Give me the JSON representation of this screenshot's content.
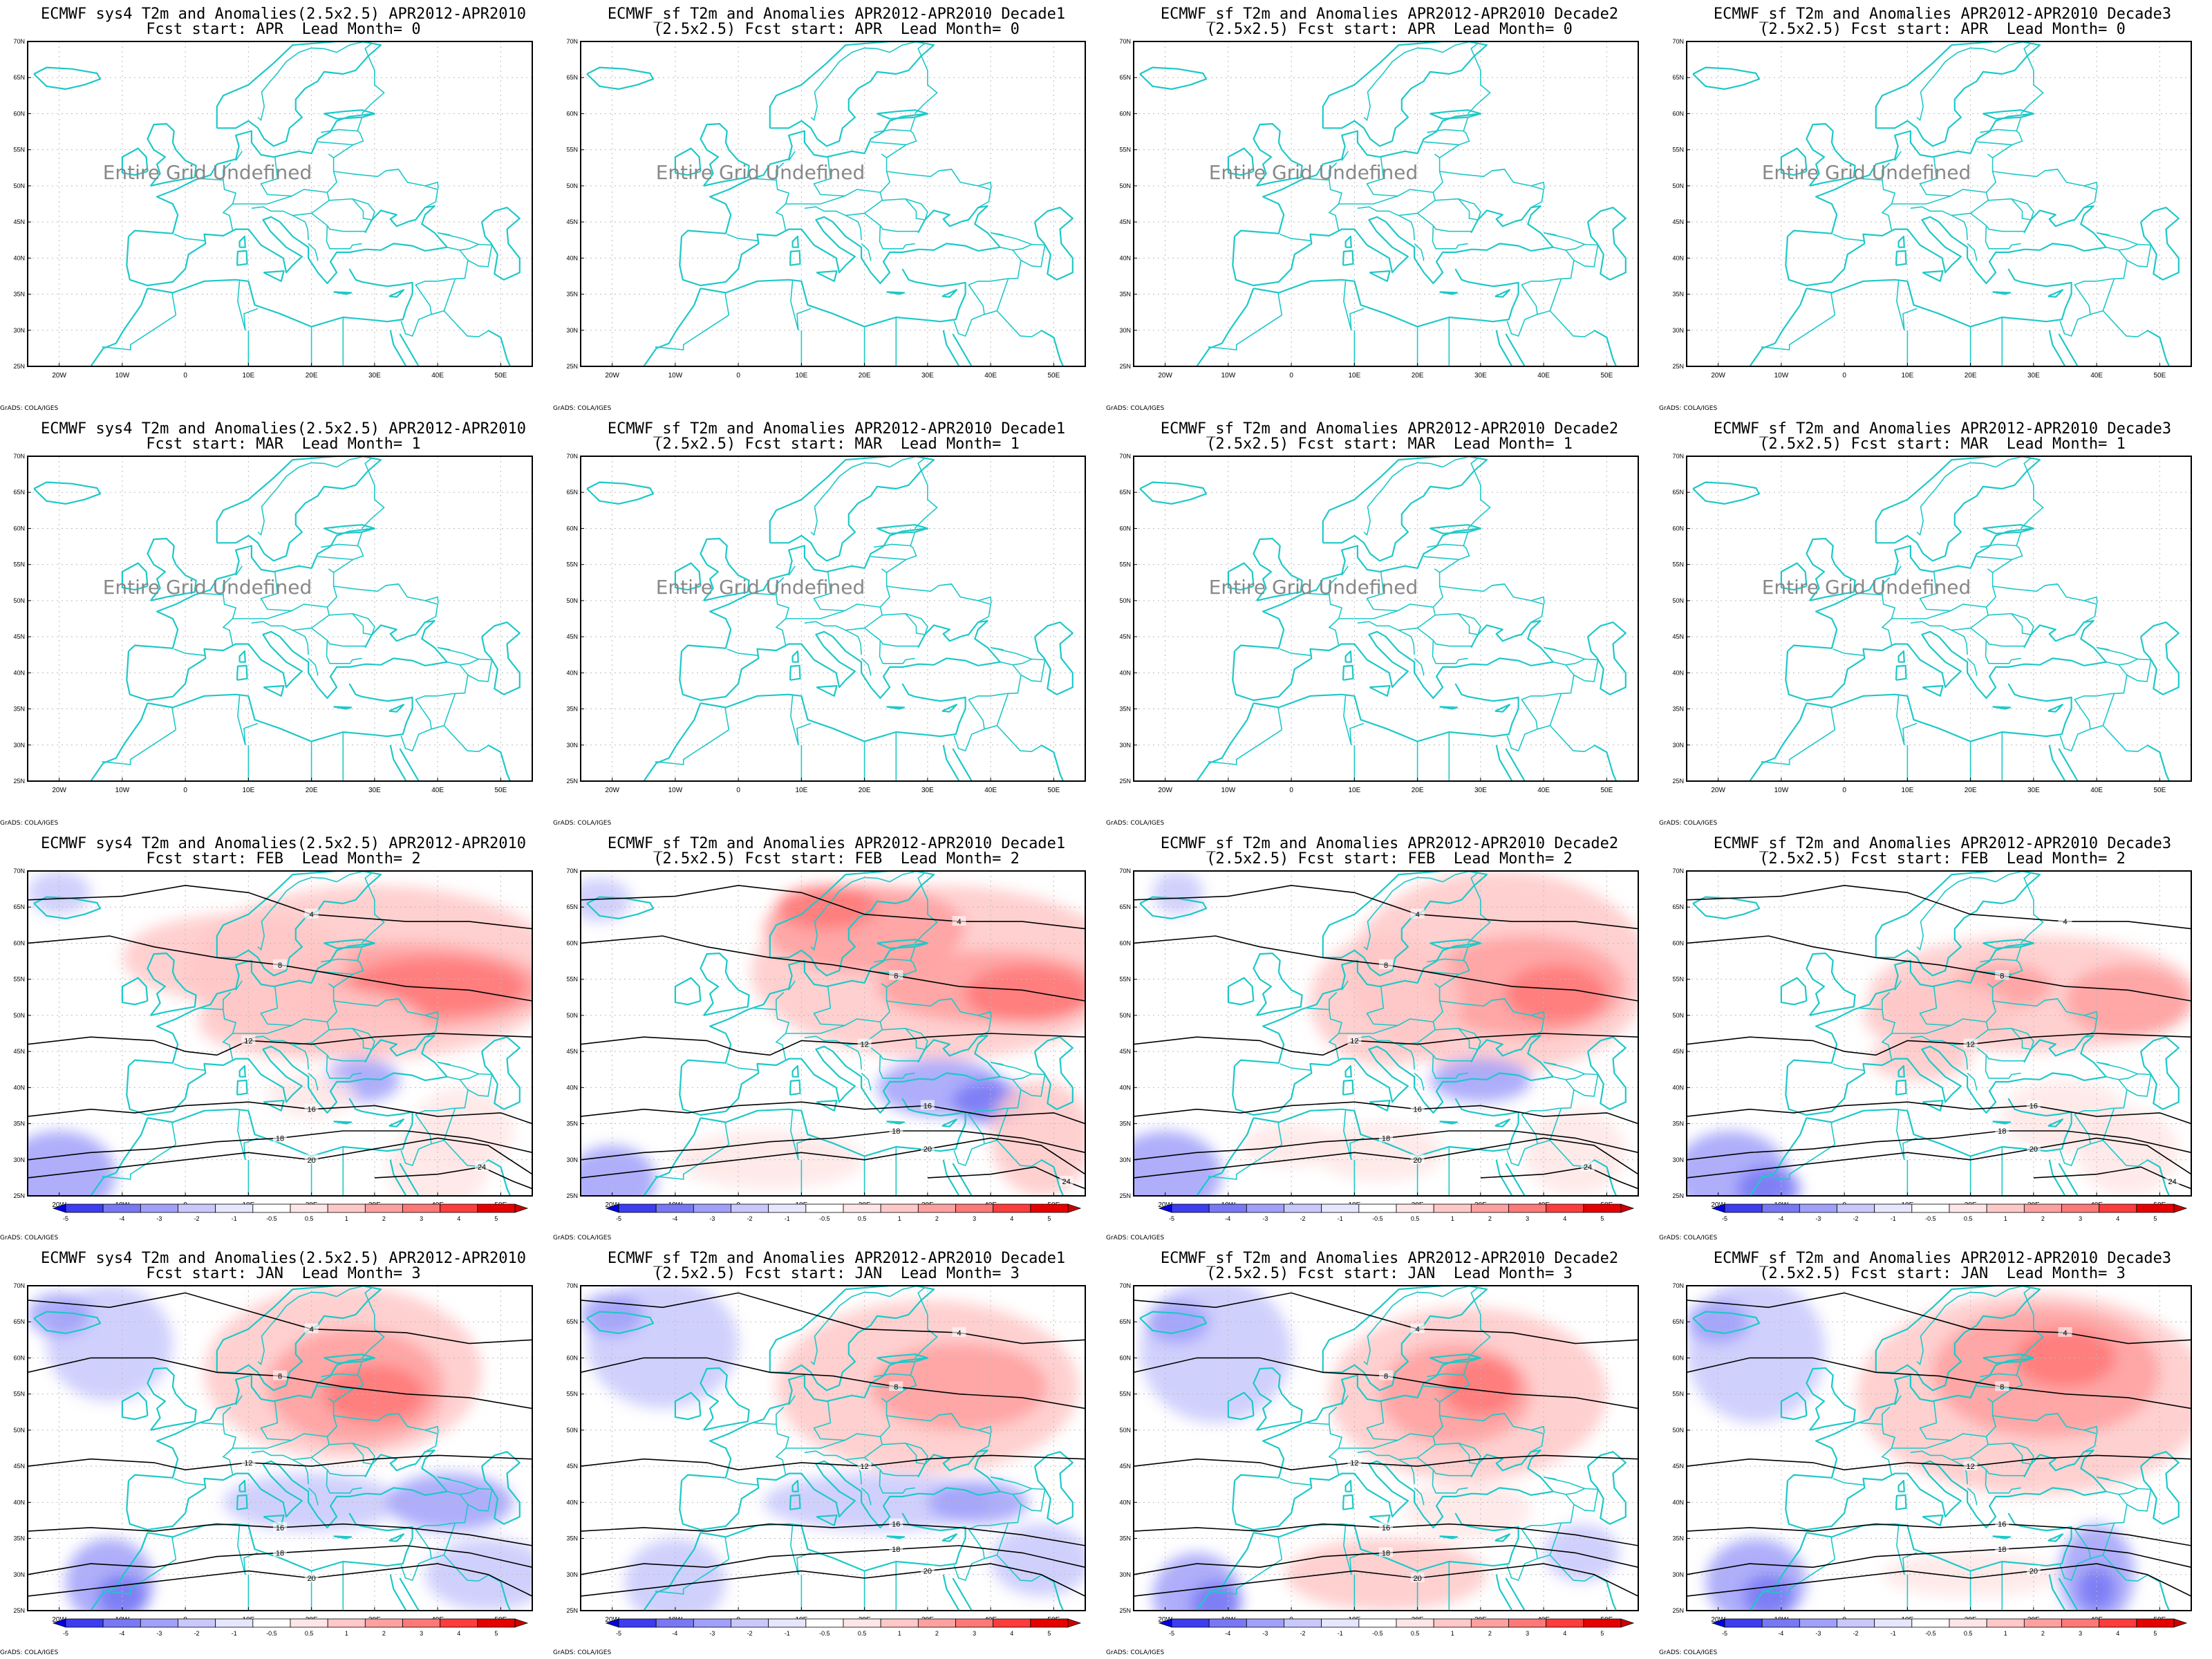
{
  "credit": "GrADS: COLA/IGES",
  "undefined_text": "Entire Grid Undefined",
  "lat_ticks": [
    "70N",
    "65N",
    "60N",
    "55N",
    "50N",
    "45N",
    "40N",
    "35N",
    "30N",
    "25N"
  ],
  "lon_ticks": [
    "20W",
    "10W",
    "0",
    "10E",
    "20E",
    "30E",
    "40E",
    "50E"
  ],
  "colorbar_labels": [
    "-5",
    "-4",
    "-3",
    "-2",
    "-1",
    "-0.5",
    "0.5",
    "1",
    "2",
    "3",
    "4",
    "5"
  ],
  "colors": {
    "coast": "#1ec8c8",
    "frame": "#000000",
    "contour": "#000000",
    "neg": [
      "#0000e6",
      "#3c3cf0",
      "#7878f5",
      "#a0a0fa",
      "#c8c8fd",
      "#e6e6ff"
    ],
    "pos": [
      "#ffe6e6",
      "#ffc8c8",
      "#ffa0a0",
      "#ff7878",
      "#ff3c3c",
      "#e60000"
    ]
  },
  "rows": [
    {
      "start": "APR",
      "lead": "0",
      "undefined": true
    },
    {
      "start": "MAR",
      "lead": "1",
      "undefined": true
    },
    {
      "start": "FEB",
      "lead": "2",
      "undefined": false
    },
    {
      "start": "JAN",
      "lead": "3",
      "undefined": false
    }
  ],
  "columns": [
    {
      "line1": "ECMWF sys4 T2m and Anomalies(2.5x2.5) APR2012-APR2010",
      "line2_prefix": ""
    },
    {
      "line1": "ECMWF_sf T2m and Anomalies APR2012-APR2010 Decade1",
      "line2_prefix": "(2.5x2.5) "
    },
    {
      "line1": "ECMWF_sf T2m and Anomalies APR2012-APR2010 Decade2",
      "line2_prefix": "(2.5x2.5) "
    },
    {
      "line1": "ECMWF_sf T2m and Anomalies APR2012-APR2010 Decade3",
      "line2_prefix": "(2.5x2.5) "
    }
  ],
  "line2_template": {
    "start_label": "Fcst start: ",
    "lead_label": "  Lead Month= "
  },
  "contour_labels": [
    "0",
    "4",
    "8",
    "12",
    "16",
    "18",
    "20",
    "24"
  ]
}
